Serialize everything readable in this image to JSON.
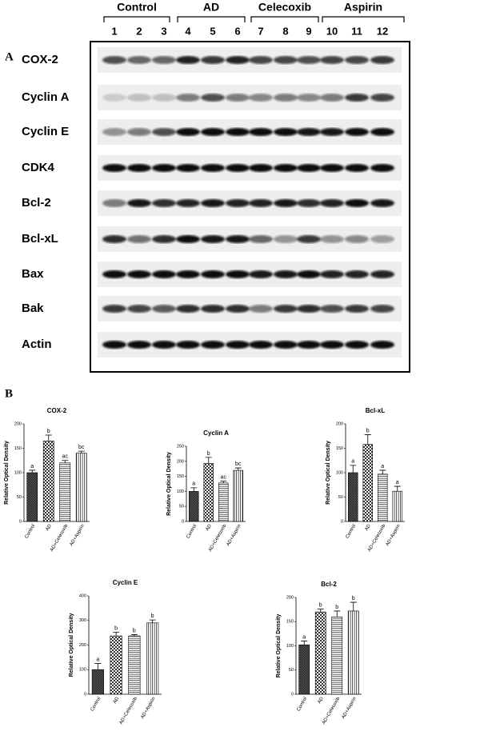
{
  "figure": {
    "panel_a": "A",
    "panel_b": "B"
  },
  "blot": {
    "groups": [
      "Control",
      "AD",
      "Celecoxib",
      "Aspirin"
    ],
    "lanes": [
      "1",
      "2",
      "3",
      "4",
      "5",
      "6",
      "7",
      "8",
      "9",
      "10",
      "11",
      "12"
    ],
    "proteins": [
      "COX-2",
      "Cyclin A",
      "Cyclin E",
      "CDK4",
      "Bcl-2",
      "Bcl-xL",
      "Bax",
      "Bak",
      "Actin"
    ]
  },
  "chart_data": [
    {
      "type": "bar",
      "title": "COX-2",
      "y_label": "Relative Optical Density",
      "categories": [
        "Control",
        "AD",
        "AD+Celecoxib",
        "AD+Aspirin"
      ],
      "values": [
        100,
        165,
        120,
        140
      ],
      "errors": [
        5,
        12,
        5,
        4
      ],
      "annotations": [
        "a",
        "b",
        "ac",
        "bc"
      ],
      "ylim": [
        0,
        200
      ],
      "yticks": [
        0,
        50,
        100,
        150,
        200
      ]
    },
    {
      "type": "bar",
      "title": "Cyclin A",
      "y_label": "Relative Optical Density",
      "categories": [
        "Control",
        "AD",
        "AD+Celecoxib",
        "AD+Aspirin"
      ],
      "values": [
        100,
        193,
        128,
        170
      ],
      "errors": [
        12,
        20,
        6,
        8
      ],
      "annotations": [
        "a",
        "b",
        "ac",
        "bc"
      ],
      "ylim": [
        0,
        250
      ],
      "yticks": [
        0,
        50,
        100,
        150,
        200,
        250
      ]
    },
    {
      "type": "bar",
      "title": "Bcl-xL",
      "y_label": "Relative Optical Density",
      "categories": [
        "Control",
        "AD",
        "AD+Celecoxib",
        "AD+Aspirin"
      ],
      "values": [
        100,
        158,
        97,
        62
      ],
      "errors": [
        15,
        20,
        8,
        10
      ],
      "annotations": [
        "a",
        "b",
        "a",
        "a"
      ],
      "ylim": [
        0,
        200
      ],
      "yticks": [
        0,
        50,
        100,
        150,
        200
      ]
    },
    {
      "type": "bar",
      "title": "Cyclin E",
      "y_label": "Relative Optical Density",
      "categories": [
        "Control",
        "AD",
        "AD+Celecoxib",
        "AD+Aspirin"
      ],
      "values": [
        100,
        237,
        237,
        290
      ],
      "errors": [
        25,
        15,
        5,
        12
      ],
      "annotations": [
        "a",
        "b",
        "b",
        "b"
      ],
      "ylim": [
        0,
        400
      ],
      "yticks": [
        0,
        100,
        200,
        300,
        400
      ]
    },
    {
      "type": "bar",
      "title": "Bcl-2",
      "y_label": "Relative Optical Density",
      "categories": [
        "Control",
        "AD",
        "AD+Celecoxib",
        "AD+Aspirin"
      ],
      "values": [
        102,
        170,
        160,
        172
      ],
      "errors": [
        8,
        6,
        12,
        18
      ],
      "annotations": [
        "a",
        "b",
        "b",
        "b"
      ],
      "ylim": [
        0,
        200
      ],
      "yticks": [
        0,
        50,
        100,
        150,
        200
      ]
    }
  ]
}
